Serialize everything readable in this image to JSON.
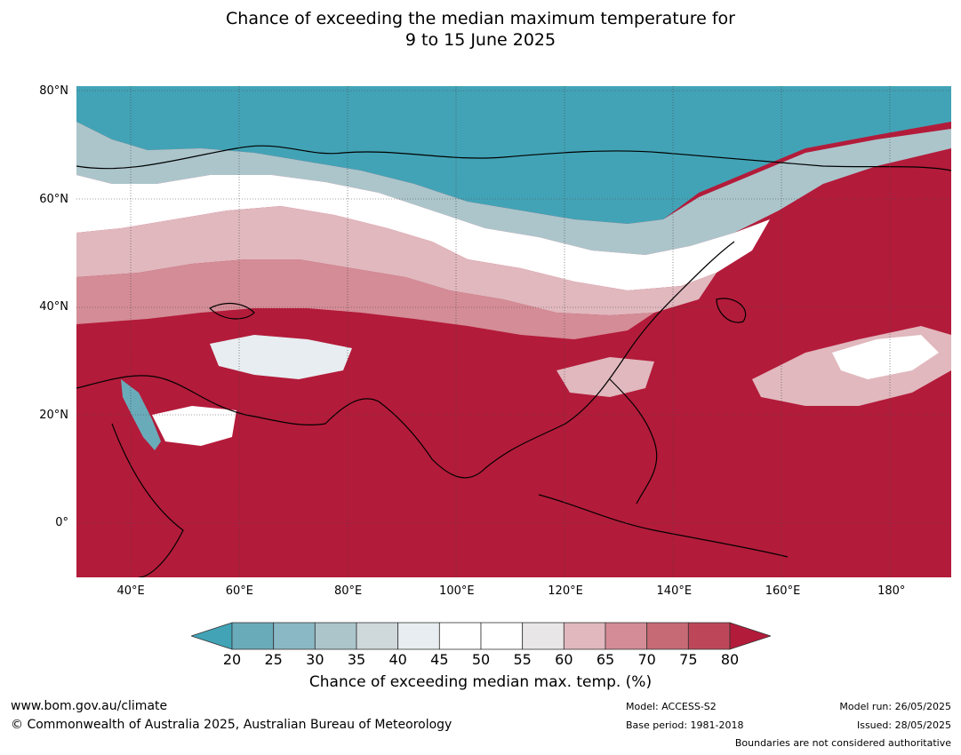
{
  "title": {
    "line1": "Chance of exceeding the median maximum temperature for",
    "line2": "9 to 15 June 2025"
  },
  "map": {
    "lat_labels": [
      "80°N",
      "60°N",
      "40°N",
      "20°N",
      "0°"
    ],
    "lon_labels": [
      "40°E",
      "60°E",
      "80°E",
      "100°E",
      "120°E",
      "140°E",
      "160°E",
      "180°"
    ],
    "lat_range": [
      -10,
      81
    ],
    "lon_range": [
      30,
      191
    ],
    "lat_ticks": [
      80,
      60,
      40,
      20,
      0
    ],
    "lon_ticks": [
      40,
      60,
      80,
      100,
      120,
      140,
      160,
      180
    ]
  },
  "legend": {
    "ticks": [
      "20",
      "25",
      "30",
      "35",
      "40",
      "45",
      "50",
      "55",
      "60",
      "65",
      "70",
      "75",
      "80"
    ],
    "colors": [
      "#42a3b6",
      "#6aabba",
      "#8ab8c4",
      "#abc5cb",
      "#cfd8db",
      "#e7edf0",
      "#ffffff",
      "#ffffff",
      "#e9e6e7",
      "#e0b8be",
      "#d48c96",
      "#c66a75",
      "#bd4758",
      "#b31b3a"
    ],
    "label": "Chance of exceeding median max. temp. (%)"
  },
  "footer": {
    "website": "www.bom.gov.au/climate",
    "copyright": "© Commonwealth of Australia 2025, Australian Bureau of Meteorology",
    "model": "Model: ACCESS-S2",
    "base_period": "Base period: 1981-2018",
    "model_run": "Model run: 26/05/2025",
    "issued": "Issued: 28/05/2025",
    "disclaimer": "Boundaries are not considered authoritative"
  }
}
